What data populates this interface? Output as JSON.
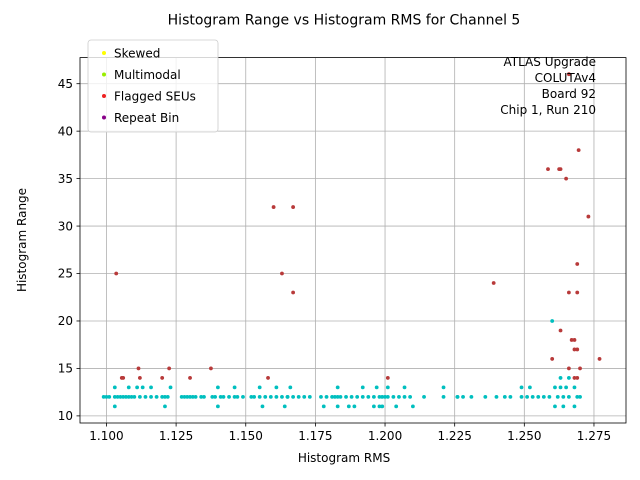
{
  "chart_data": {
    "type": "scatter",
    "title": "Histogram Range vs Histogram RMS for Channel 5",
    "xlabel": "Histogram RMS",
    "ylabel": "Histogram Range",
    "xlim": [
      1.0905,
      1.2865
    ],
    "ylim": [
      9.25,
      47.75
    ],
    "xticks": [
      1.1,
      1.125,
      1.15,
      1.175,
      1.2,
      1.225,
      1.25,
      1.275
    ],
    "xtick_labels": [
      "1.100",
      "1.125",
      "1.150",
      "1.175",
      "1.200",
      "1.225",
      "1.250",
      "1.275"
    ],
    "yticks": [
      10,
      15,
      20,
      25,
      30,
      35,
      40,
      45
    ],
    "ytick_labels": [
      "10",
      "15",
      "20",
      "25",
      "30",
      "35",
      "40",
      "45"
    ],
    "grid": true,
    "legend_position": "top-left",
    "legend": [
      {
        "label": "Skewed",
        "color": "#ffff00"
      },
      {
        "label": "Multimodal",
        "color": "#99ee00"
      },
      {
        "label": "Flagged SEUs",
        "color": "#ee2222"
      },
      {
        "label": "Repeat Bin",
        "color": "#880088"
      }
    ],
    "annotation": [
      "ATLAS Upgrade",
      "COLUTAv4",
      "Board 92",
      "Chip 1, Run 210"
    ],
    "series": [
      {
        "color": "#00bfbf",
        "x": [
          1.099,
          1.1,
          1.101,
          1.103,
          1.104,
          1.105,
          1.106,
          1.107,
          1.108,
          1.109,
          1.11,
          1.112,
          1.114,
          1.116,
          1.118,
          1.12,
          1.121,
          1.127,
          1.128,
          1.129,
          1.13,
          1.131,
          1.132,
          1.134,
          1.135,
          1.138,
          1.139,
          1.141,
          1.142,
          1.144,
          1.146,
          1.147,
          1.149,
          1.152,
          1.153,
          1.155,
          1.157,
          1.159,
          1.161,
          1.163,
          1.165,
          1.167,
          1.169,
          1.171,
          1.173,
          1.177,
          1.179,
          1.181,
          1.182,
          1.184,
          1.186,
          1.188,
          1.19,
          1.192,
          1.194,
          1.196,
          1.198,
          1.199,
          1.2,
          1.203,
          1.205,
          1.207,
          1.209,
          1.214,
          1.221,
          1.226,
          1.228,
          1.231,
          1.236,
          1.24,
          1.243,
          1.245,
          1.249,
          1.251,
          1.253,
          1.255,
          1.257,
          1.259,
          1.262,
          1.264,
          1.266,
          1.269,
          1.27,
          1.103,
          1.108,
          1.111,
          1.113,
          1.123,
          1.14,
          1.146,
          1.155,
          1.161,
          1.166,
          1.183,
          1.192,
          1.197,
          1.201,
          1.207,
          1.221,
          1.249,
          1.252,
          1.261,
          1.263,
          1.265,
          1.268,
          1.103,
          1.121,
          1.14,
          1.156,
          1.164,
          1.178,
          1.183,
          1.187,
          1.196,
          1.199,
          1.204,
          1.21,
          1.261,
          1.264,
          1.268,
          1.116,
          1.122,
          1.165,
          1.183,
          1.189,
          1.198,
          1.201,
          1.226,
          1.263,
          1.266,
          1.26
        ],
        "y": [
          12,
          12,
          12,
          12,
          12,
          12,
          12,
          12,
          12,
          12,
          12,
          12,
          12,
          12,
          12,
          12,
          12,
          12,
          12,
          12,
          12,
          12,
          12,
          12,
          12,
          12,
          12,
          12,
          12,
          12,
          12,
          12,
          12,
          12,
          12,
          12,
          12,
          12,
          12,
          12,
          12,
          12,
          12,
          12,
          12,
          12,
          12,
          12,
          12,
          12,
          12,
          12,
          12,
          12,
          12,
          12,
          12,
          12,
          12,
          12,
          12,
          12,
          12,
          12,
          12,
          12,
          12,
          12,
          12,
          12,
          12,
          12,
          12,
          12,
          12,
          12,
          12,
          12,
          12,
          12,
          12,
          12,
          12,
          13,
          13,
          13,
          13,
          13,
          13,
          13,
          13,
          13,
          13,
          13,
          13,
          13,
          13,
          13,
          13,
          13,
          13,
          13,
          13,
          13,
          13,
          11,
          11,
          11,
          11,
          11,
          11,
          11,
          11,
          11,
          11,
          11,
          11,
          11,
          11,
          11,
          13,
          12,
          12,
          12,
          11,
          11,
          12,
          12,
          14,
          14,
          20
        ]
      },
      {
        "color": "#b83a3a",
        "x": [
          1.1035,
          1.1055,
          1.106,
          1.1115,
          1.112,
          1.12,
          1.1225,
          1.13,
          1.1375,
          1.16,
          1.163,
          1.167,
          1.167,
          1.158,
          1.201,
          1.239,
          1.2585,
          1.26,
          1.2625,
          1.263,
          1.265,
          1.266,
          1.267,
          1.268,
          1.269,
          1.2695,
          1.269,
          1.273,
          1.277,
          1.263,
          1.268,
          1.266,
          1.269,
          1.27,
          1.268,
          1.266,
          1.269
        ],
        "y": [
          25,
          14,
          14,
          15,
          14,
          14,
          15,
          14,
          15,
          32,
          25,
          32,
          23,
          14,
          14,
          24,
          36,
          16,
          36,
          19,
          35,
          46,
          18,
          18,
          17,
          38,
          26,
          31,
          16,
          36,
          17,
          23,
          23,
          15,
          14,
          15,
          14
        ]
      }
    ]
  }
}
